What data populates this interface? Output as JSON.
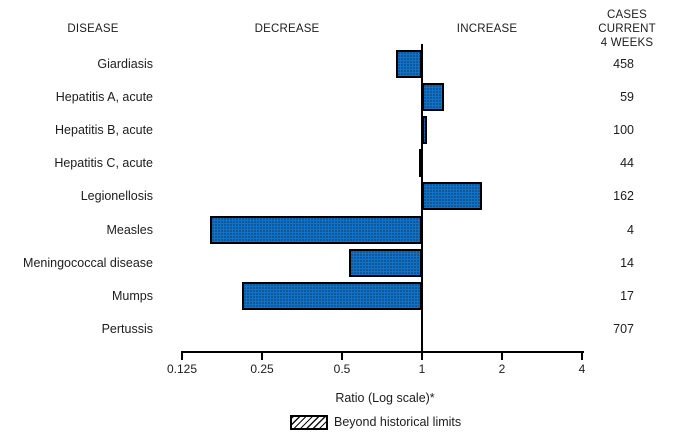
{
  "header": {
    "disease": "DISEASE",
    "decrease": "DECREASE",
    "increase": "INCREASE",
    "cases_line1": "CASES CURRENT",
    "cases_line2": "4 WEEKS"
  },
  "legend": {
    "label": "Beyond historical limits"
  },
  "colors": {
    "bar_fill": "#1272C5",
    "bar_border": "#000000",
    "text": "#1C1C1C"
  },
  "chart_data": {
    "type": "bar",
    "orientation": "horizontal",
    "scale": "log2",
    "baseline": 1,
    "xlabel": "Ratio (Log scale)*",
    "x_ticks": [
      0.125,
      0.25,
      0.5,
      1,
      2,
      4
    ],
    "xlim": [
      0.125,
      4
    ],
    "grid": false,
    "legend_position": "bottom",
    "rows": [
      {
        "disease": "Giardiasis",
        "ratio": 0.8,
        "cases": 458,
        "beyond_historical_limits": false
      },
      {
        "disease": "Hepatitis A, acute",
        "ratio": 1.21,
        "cases": 59,
        "beyond_historical_limits": false
      },
      {
        "disease": "Hepatitis B, acute",
        "ratio": 1.04,
        "cases": 100,
        "beyond_historical_limits": false
      },
      {
        "disease": "Hepatitis C, acute",
        "ratio": 0.98,
        "cases": 44,
        "beyond_historical_limits": false
      },
      {
        "disease": "Legionellosis",
        "ratio": 1.68,
        "cases": 162,
        "beyond_historical_limits": false
      },
      {
        "disease": "Measles",
        "ratio": 0.16,
        "cases": 4,
        "beyond_historical_limits": false
      },
      {
        "disease": "Meningococcal disease",
        "ratio": 0.53,
        "cases": 14,
        "beyond_historical_limits": false
      },
      {
        "disease": "Mumps",
        "ratio": 0.21,
        "cases": 17,
        "beyond_historical_limits": false
      },
      {
        "disease": "Pertussis",
        "ratio": 1.0,
        "cases": 707,
        "beyond_historical_limits": false
      }
    ]
  }
}
